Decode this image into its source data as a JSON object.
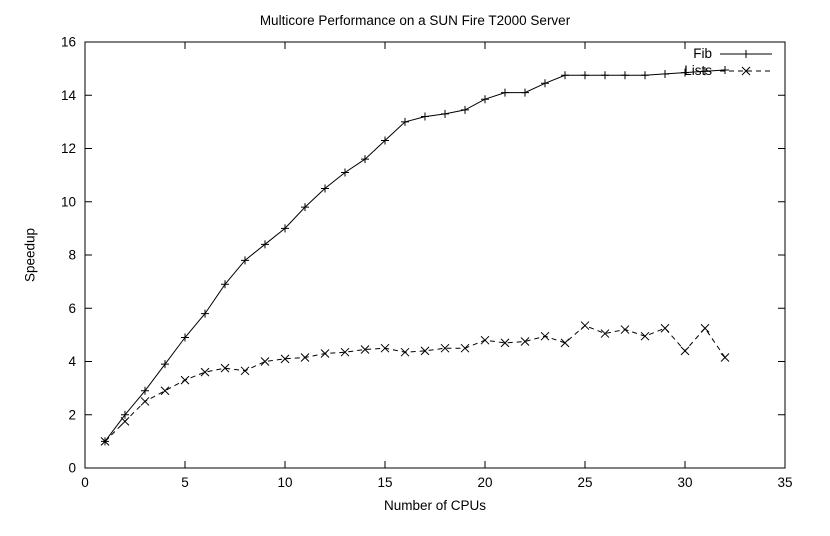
{
  "chart_data": {
    "type": "line",
    "title": "Multicore Performance on a SUN Fire T2000 Server",
    "xlabel": "Number of CPUs",
    "ylabel": "Speedup",
    "xlim": [
      0,
      35
    ],
    "ylim": [
      0,
      16
    ],
    "xticks": [
      0,
      5,
      10,
      15,
      20,
      25,
      30,
      35
    ],
    "yticks": [
      0,
      2,
      4,
      6,
      8,
      10,
      12,
      14,
      16
    ],
    "grid": false,
    "legend_position": "top-right-inside",
    "line_color": "#000000",
    "x": [
      1,
      2,
      3,
      4,
      5,
      6,
      7,
      8,
      9,
      10,
      11,
      12,
      13,
      14,
      15,
      16,
      17,
      18,
      19,
      20,
      21,
      22,
      23,
      24,
      25,
      26,
      27,
      28,
      29,
      30,
      31,
      32
    ],
    "series": [
      {
        "name": "Fib",
        "line": "solid",
        "marker": "plus",
        "values": [
          1.0,
          2.0,
          2.9,
          3.9,
          4.9,
          5.8,
          6.9,
          7.8,
          8.4,
          9.0,
          9.8,
          10.5,
          11.1,
          11.6,
          12.3,
          13.0,
          13.2,
          13.3,
          13.45,
          13.85,
          14.1,
          14.1,
          14.45,
          14.75,
          14.75,
          14.75,
          14.75,
          14.75,
          14.8,
          14.85,
          14.9,
          14.95
        ]
      },
      {
        "name": "Lists",
        "line": "dashed",
        "marker": "cross",
        "values": [
          1.0,
          1.75,
          2.5,
          2.9,
          3.3,
          3.6,
          3.75,
          3.65,
          4.0,
          4.1,
          4.15,
          4.3,
          4.35,
          4.45,
          4.5,
          4.35,
          4.4,
          4.5,
          4.5,
          4.8,
          4.7,
          4.75,
          4.95,
          4.7,
          5.35,
          5.05,
          5.2,
          4.95,
          5.25,
          4.4,
          5.25,
          4.15
        ]
      }
    ]
  }
}
